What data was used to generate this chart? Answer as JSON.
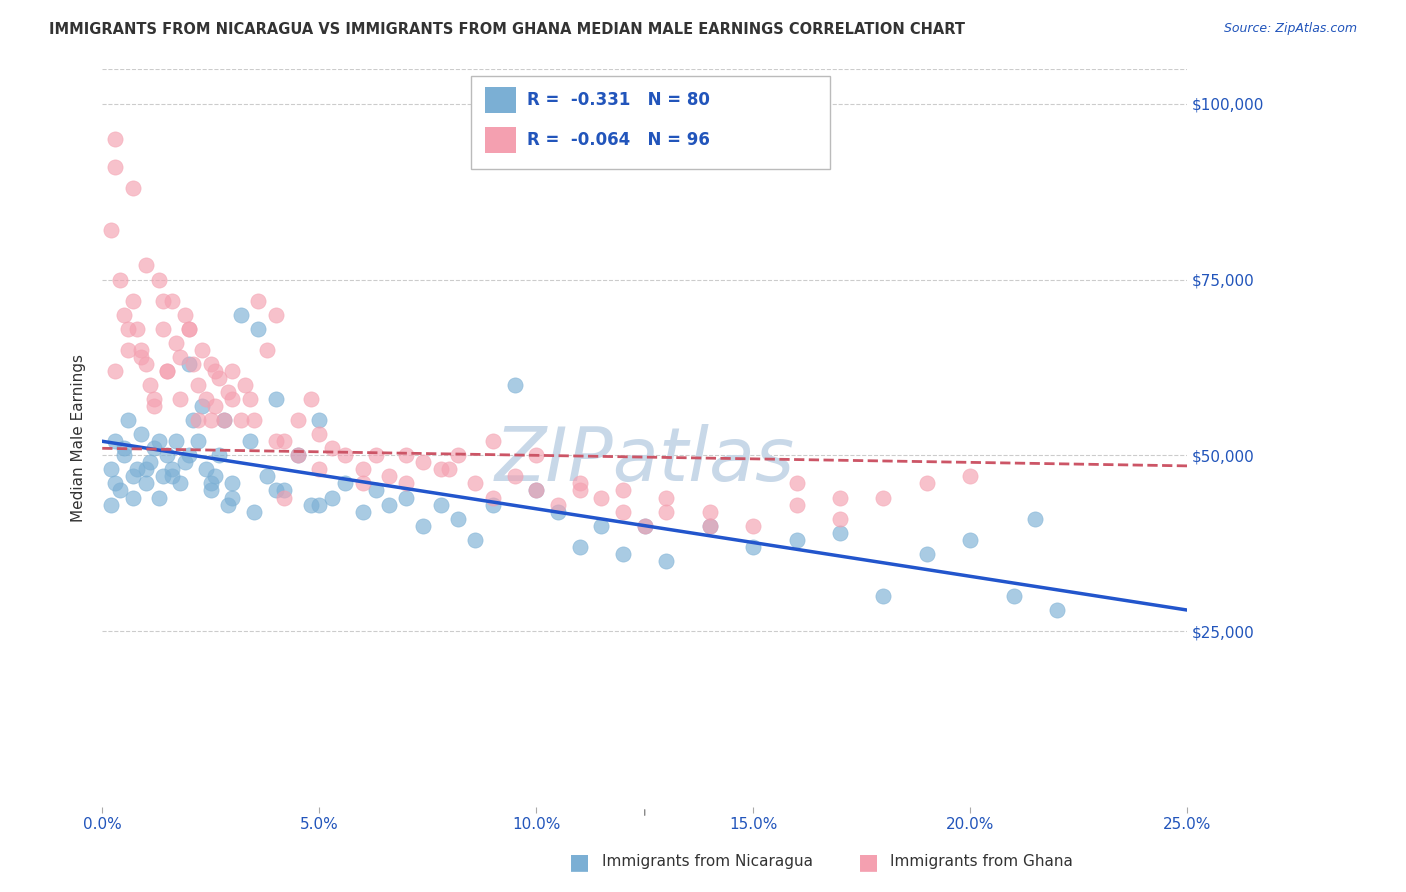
{
  "title": "IMMIGRANTS FROM NICARAGUA VS IMMIGRANTS FROM GHANA MEDIAN MALE EARNINGS CORRELATION CHART",
  "source": "Source: ZipAtlas.com",
  "xlabel_ticks": [
    "0.0%",
    "5.0%",
    "10.0%",
    "15.0%",
    "20.0%",
    "25.0%"
  ],
  "xlabel_vals": [
    0.0,
    0.05,
    0.1,
    0.15,
    0.2,
    0.25
  ],
  "ylabel": "Median Male Earnings",
  "yticks": [
    0,
    25000,
    50000,
    75000,
    100000
  ],
  "ytick_labels": [
    "",
    "$25,000",
    "$50,000",
    "$75,000",
    "$100,000"
  ],
  "xlim": [
    0.0,
    0.25
  ],
  "ylim": [
    0,
    105000
  ],
  "blue_R": "-0.331",
  "blue_N": "80",
  "pink_R": "-0.064",
  "pink_N": "96",
  "blue_color": "#7BAFD4",
  "pink_color": "#F4A0B0",
  "line_blue": "#2255CC",
  "line_pink": "#CC5566",
  "watermark_color": "#C8D8E8",
  "axis_label_color": "#2255BB",
  "title_color": "#333333",
  "background_color": "#FFFFFF",
  "blue_scatter_x": [
    0.002,
    0.003,
    0.004,
    0.005,
    0.006,
    0.007,
    0.008,
    0.009,
    0.01,
    0.011,
    0.012,
    0.013,
    0.014,
    0.015,
    0.016,
    0.017,
    0.018,
    0.019,
    0.02,
    0.021,
    0.022,
    0.023,
    0.024,
    0.025,
    0.026,
    0.027,
    0.028,
    0.029,
    0.03,
    0.032,
    0.034,
    0.036,
    0.038,
    0.04,
    0.042,
    0.045,
    0.048,
    0.05,
    0.053,
    0.056,
    0.06,
    0.063,
    0.066,
    0.07,
    0.074,
    0.078,
    0.082,
    0.086,
    0.09,
    0.095,
    0.1,
    0.105,
    0.11,
    0.115,
    0.12,
    0.125,
    0.13,
    0.14,
    0.15,
    0.16,
    0.17,
    0.18,
    0.19,
    0.2,
    0.21,
    0.215,
    0.22,
    0.002,
    0.003,
    0.005,
    0.007,
    0.01,
    0.013,
    0.016,
    0.02,
    0.025,
    0.03,
    0.035,
    0.04,
    0.05
  ],
  "blue_scatter_y": [
    48000,
    52000,
    45000,
    50000,
    55000,
    47000,
    48000,
    53000,
    46000,
    49000,
    51000,
    44000,
    47000,
    50000,
    48000,
    52000,
    46000,
    49000,
    63000,
    55000,
    52000,
    57000,
    48000,
    45000,
    47000,
    50000,
    55000,
    43000,
    46000,
    70000,
    52000,
    68000,
    47000,
    58000,
    45000,
    50000,
    43000,
    55000,
    44000,
    46000,
    42000,
    45000,
    43000,
    44000,
    40000,
    43000,
    41000,
    38000,
    43000,
    60000,
    45000,
    42000,
    37000,
    40000,
    36000,
    40000,
    35000,
    40000,
    37000,
    38000,
    39000,
    30000,
    36000,
    38000,
    30000,
    41000,
    28000,
    43000,
    46000,
    51000,
    44000,
    48000,
    52000,
    47000,
    50000,
    46000,
    44000,
    42000,
    45000,
    43000
  ],
  "pink_scatter_x": [
    0.002,
    0.003,
    0.004,
    0.005,
    0.006,
    0.007,
    0.008,
    0.009,
    0.01,
    0.011,
    0.012,
    0.013,
    0.014,
    0.015,
    0.016,
    0.017,
    0.018,
    0.019,
    0.02,
    0.021,
    0.022,
    0.023,
    0.024,
    0.025,
    0.026,
    0.027,
    0.028,
    0.029,
    0.03,
    0.032,
    0.034,
    0.036,
    0.038,
    0.04,
    0.042,
    0.045,
    0.048,
    0.05,
    0.053,
    0.056,
    0.06,
    0.063,
    0.066,
    0.07,
    0.074,
    0.078,
    0.082,
    0.086,
    0.09,
    0.095,
    0.1,
    0.105,
    0.11,
    0.115,
    0.12,
    0.125,
    0.13,
    0.14,
    0.15,
    0.16,
    0.17,
    0.18,
    0.19,
    0.003,
    0.006,
    0.009,
    0.012,
    0.015,
    0.018,
    0.022,
    0.026,
    0.03,
    0.035,
    0.04,
    0.045,
    0.05,
    0.06,
    0.07,
    0.08,
    0.09,
    0.1,
    0.11,
    0.12,
    0.13,
    0.14,
    0.16,
    0.17,
    0.003,
    0.007,
    0.01,
    0.014,
    0.02,
    0.025,
    0.033,
    0.042,
    0.2
  ],
  "pink_scatter_y": [
    82000,
    91000,
    75000,
    70000,
    65000,
    72000,
    68000,
    64000,
    63000,
    60000,
    58000,
    75000,
    68000,
    62000,
    72000,
    66000,
    64000,
    70000,
    68000,
    63000,
    60000,
    65000,
    58000,
    63000,
    57000,
    61000,
    55000,
    59000,
    62000,
    55000,
    58000,
    72000,
    65000,
    70000,
    52000,
    55000,
    58000,
    53000,
    51000,
    50000,
    48000,
    50000,
    47000,
    46000,
    49000,
    48000,
    50000,
    46000,
    44000,
    47000,
    45000,
    43000,
    46000,
    44000,
    42000,
    40000,
    44000,
    42000,
    40000,
    43000,
    41000,
    44000,
    46000,
    62000,
    68000,
    65000,
    57000,
    62000,
    58000,
    55000,
    62000,
    58000,
    55000,
    52000,
    50000,
    48000,
    46000,
    50000,
    48000,
    52000,
    50000,
    45000,
    45000,
    42000,
    40000,
    46000,
    44000,
    95000,
    88000,
    77000,
    72000,
    68000,
    55000,
    60000,
    44000,
    47000
  ],
  "blue_line_x": [
    0.0,
    0.25
  ],
  "blue_line_y": [
    52000,
    28000
  ],
  "pink_line_x": [
    0.0,
    0.25
  ],
  "pink_line_y": [
    51000,
    48500
  ]
}
